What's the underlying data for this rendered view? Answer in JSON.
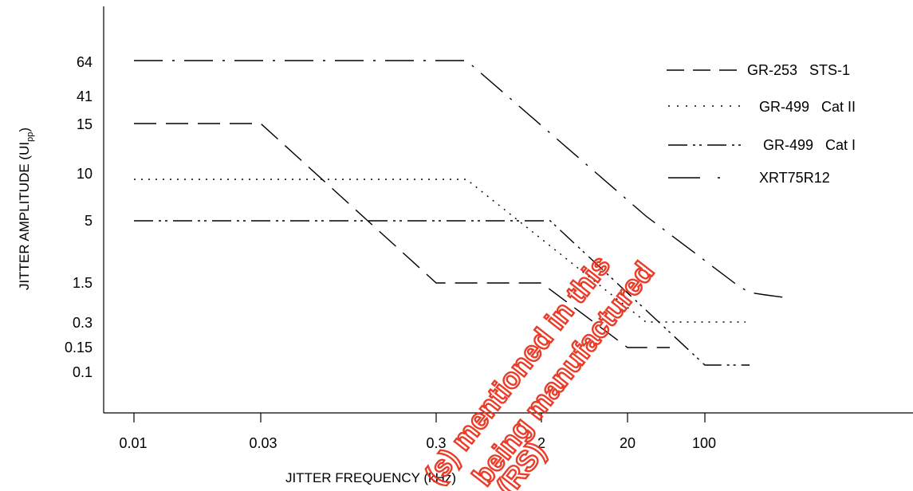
{
  "chart_data": {
    "type": "line",
    "title": "",
    "xlabel": "JITTER FREQUENCY  (kHz)",
    "ylabel_main": "JITTER AMPLITUDE (UI",
    "ylabel_sub": "pp",
    "ylabel_close": ")",
    "x_ticks": [
      "0.01",
      "0.03",
      "0.3",
      "2",
      "20",
      "100"
    ],
    "y_ticks": [
      "64",
      "41",
      "15",
      "10",
      "5",
      "1.5",
      "0.3",
      "0.15",
      "0.1"
    ],
    "grid": false,
    "legend_position": "top-right",
    "series": [
      {
        "name": "GR-253   STS-1",
        "dash": "dash",
        "points": [
          [
            "0.01",
            "15"
          ],
          [
            "0.03",
            "15"
          ],
          [
            "0.3",
            "1.5"
          ],
          [
            "2",
            "1.5"
          ],
          [
            "20",
            "0.15"
          ],
          [
            "~40",
            "0.15"
          ]
        ]
      },
      {
        "name": "GR-499   Cat II",
        "dash": "dot",
        "points": [
          [
            "0.01",
            "10"
          ],
          [
            "~0.5",
            "10"
          ],
          [
            "~30",
            "0.3"
          ],
          [
            "~200",
            "0.3"
          ]
        ]
      },
      {
        "name": "GR-499   Cat I",
        "dash": "dash-dot-dot",
        "points": [
          [
            "0.01",
            "5"
          ],
          [
            "~3",
            "5"
          ],
          [
            "100",
            "0.1"
          ],
          [
            "~250",
            "0.1"
          ]
        ]
      },
      {
        "name": "XRT75R12",
        "dash": "long-dash-dot",
        "points": [
          [
            "0.01",
            "64"
          ],
          [
            "~0.5",
            "64"
          ],
          [
            "~30",
            "5"
          ],
          [
            "~200",
            "1.3"
          ],
          [
            "~400",
            "1.2"
          ]
        ]
      }
    ]
  },
  "watermark": {
    "color": "#e8321e",
    "lines": [
      "(s) mentioned in this",
      "being manufactured",
      "(RS)"
    ]
  }
}
